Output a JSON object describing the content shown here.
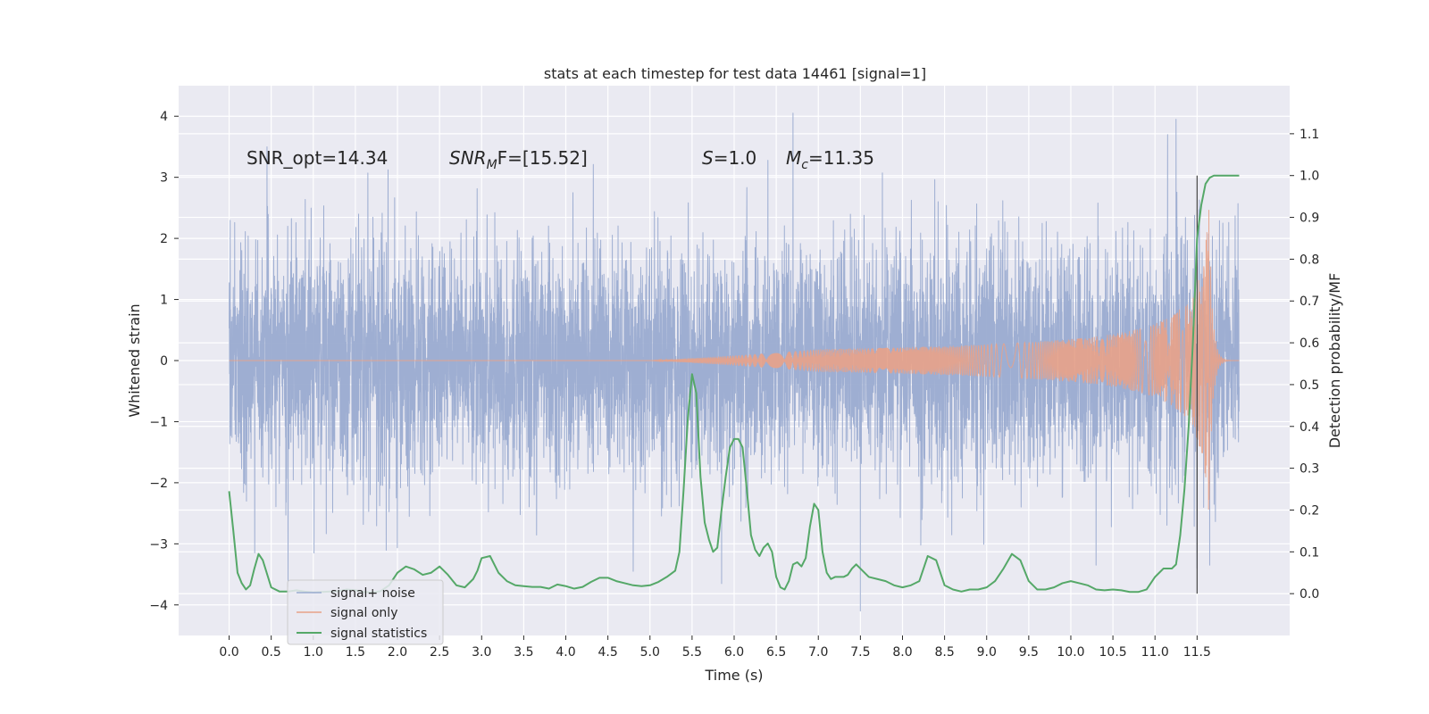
{
  "chart_data": {
    "type": "line",
    "title": "stats at each timestep for test data 14461 [signal=1]",
    "xlabel": "Time (s)",
    "ylabel_left": "Whitened strain",
    "ylabel_right": "Detection probability/MF",
    "xlim": [
      -0.6,
      12.6
    ],
    "ylim_left": [
      -4.5,
      4.5
    ],
    "ylim_right": [
      -0.1,
      1.215
    ],
    "x_ticks": [
      "0.0",
      "0.5",
      "1.0",
      "1.5",
      "2.0",
      "2.5",
      "3.0",
      "3.5",
      "4.0",
      "4.5",
      "5.0",
      "5.5",
      "6.0",
      "6.5",
      "7.0",
      "7.5",
      "8.0",
      "8.5",
      "9.0",
      "9.5",
      "10.0",
      "10.5",
      "11.0",
      "11.5"
    ],
    "y_ticks_left": [
      "−4",
      "−3",
      "−2",
      "−1",
      "0",
      "1",
      "2",
      "3",
      "4"
    ],
    "y_ticks_right": [
      "0.0",
      "0.1",
      "0.2",
      "0.3",
      "0.4",
      "0.5",
      "0.6",
      "0.7",
      "0.8",
      "0.9",
      "1.0",
      "1.1"
    ],
    "grid": true,
    "legend_position": "lower-left",
    "annotations": {
      "snr_opt": "SNR_opt=14.34",
      "snr_mf_sym": "SNR",
      "snr_mf_sub": "M",
      "snr_mf_rest": "F=[15.52]",
      "s_sym": "S",
      "s_rest": "=1.0",
      "mc_sym": "M",
      "mc_sub": "c",
      "mc_rest": "=11.35"
    },
    "event_marker_x": 11.5,
    "series": [
      {
        "name": "signal+ noise",
        "color": "#9aabd0",
        "axis": "left",
        "x_range": [
          0.0,
          12.0
        ],
        "typical_envelope": [
          -2.0,
          2.0
        ],
        "peaks": [
          {
            "x": 0.45,
            "y": 3.5
          },
          {
            "x": 6.7,
            "y": 4.05
          },
          {
            "x": 11.25,
            "y": 3.95
          },
          {
            "x": 11.15,
            "y": 3.7
          },
          {
            "x": 0.7,
            "y": -3.7
          },
          {
            "x": 5.85,
            "y": -3.65
          },
          {
            "x": 7.5,
            "y": -4.1
          },
          {
            "x": 11.5,
            "y": -3.4
          },
          {
            "x": 11.65,
            "y": -3.35
          },
          {
            "x": 4.8,
            "y": -3.45
          },
          {
            "x": 10.3,
            "y": -3.35
          }
        ]
      },
      {
        "name": "signal only",
        "color": "#e8a288",
        "axis": "left",
        "chirp_start": 7.0,
        "merger": 11.65,
        "peak_amplitude": 2.8
      },
      {
        "name": "signal statistics",
        "color": "#55a868",
        "axis": "right",
        "x": [
          0.0,
          0.05,
          0.1,
          0.15,
          0.2,
          0.25,
          0.3,
          0.35,
          0.4,
          0.5,
          0.6,
          0.7,
          0.8,
          0.9,
          1.0,
          1.1,
          1.2,
          1.3,
          1.4,
          1.5,
          1.6,
          1.7,
          1.8,
          1.9,
          2.0,
          2.1,
          2.2,
          2.3,
          2.4,
          2.5,
          2.6,
          2.7,
          2.8,
          2.9,
          2.95,
          3.0,
          3.1,
          3.2,
          3.3,
          3.4,
          3.5,
          3.6,
          3.7,
          3.8,
          3.9,
          4.0,
          4.1,
          4.2,
          4.3,
          4.4,
          4.5,
          4.6,
          4.7,
          4.8,
          4.9,
          5.0,
          5.1,
          5.2,
          5.3,
          5.35,
          5.4,
          5.45,
          5.5,
          5.55,
          5.6,
          5.65,
          5.7,
          5.75,
          5.8,
          5.85,
          5.9,
          5.95,
          6.0,
          6.05,
          6.1,
          6.15,
          6.2,
          6.25,
          6.3,
          6.35,
          6.4,
          6.45,
          6.5,
          6.55,
          6.6,
          6.65,
          6.7,
          6.75,
          6.8,
          6.85,
          6.9,
          6.95,
          7.0,
          7.05,
          7.1,
          7.15,
          7.2,
          7.25,
          7.3,
          7.35,
          7.4,
          7.45,
          7.5,
          7.6,
          7.7,
          7.8,
          7.9,
          8.0,
          8.1,
          8.2,
          8.3,
          8.4,
          8.5,
          8.6,
          8.7,
          8.8,
          8.9,
          9.0,
          9.1,
          9.2,
          9.3,
          9.4,
          9.5,
          9.6,
          9.7,
          9.8,
          9.9,
          10.0,
          10.1,
          10.2,
          10.3,
          10.4,
          10.5,
          10.6,
          10.7,
          10.8,
          10.9,
          11.0,
          11.05,
          11.1,
          11.15,
          11.2,
          11.25,
          11.3,
          11.35,
          11.4,
          11.45,
          11.5,
          11.55,
          11.6,
          11.65,
          11.7,
          11.8,
          11.9,
          12.0
        ],
        "y": [
          0.245,
          0.15,
          0.05,
          0.025,
          0.01,
          0.02,
          0.06,
          0.095,
          0.08,
          0.015,
          0.005,
          0.005,
          0.008,
          0.005,
          0.003,
          0.004,
          0.005,
          0.006,
          0.01,
          0.008,
          0.004,
          0.003,
          0.006,
          0.02,
          0.05,
          0.065,
          0.058,
          0.045,
          0.05,
          0.065,
          0.045,
          0.02,
          0.015,
          0.035,
          0.055,
          0.085,
          0.09,
          0.05,
          0.03,
          0.02,
          0.018,
          0.016,
          0.016,
          0.012,
          0.022,
          0.018,
          0.012,
          0.016,
          0.028,
          0.038,
          0.038,
          0.03,
          0.025,
          0.02,
          0.018,
          0.02,
          0.028,
          0.04,
          0.055,
          0.1,
          0.25,
          0.42,
          0.525,
          0.48,
          0.28,
          0.17,
          0.13,
          0.1,
          0.11,
          0.2,
          0.28,
          0.35,
          0.37,
          0.37,
          0.35,
          0.25,
          0.14,
          0.105,
          0.09,
          0.11,
          0.12,
          0.1,
          0.04,
          0.015,
          0.01,
          0.03,
          0.07,
          0.075,
          0.065,
          0.085,
          0.16,
          0.215,
          0.2,
          0.1,
          0.05,
          0.035,
          0.04,
          0.04,
          0.04,
          0.045,
          0.06,
          0.07,
          0.06,
          0.04,
          0.035,
          0.03,
          0.02,
          0.015,
          0.02,
          0.03,
          0.09,
          0.08,
          0.02,
          0.01,
          0.005,
          0.01,
          0.01,
          0.015,
          0.03,
          0.06,
          0.095,
          0.08,
          0.03,
          0.01,
          0.01,
          0.015,
          0.025,
          0.03,
          0.025,
          0.02,
          0.01,
          0.008,
          0.01,
          0.008,
          0.004,
          0.004,
          0.01,
          0.04,
          0.05,
          0.06,
          0.06,
          0.06,
          0.07,
          0.14,
          0.25,
          0.4,
          0.6,
          0.85,
          0.93,
          0.98,
          0.995,
          1.0,
          1.0,
          1.0,
          1.0
        ]
      }
    ]
  }
}
